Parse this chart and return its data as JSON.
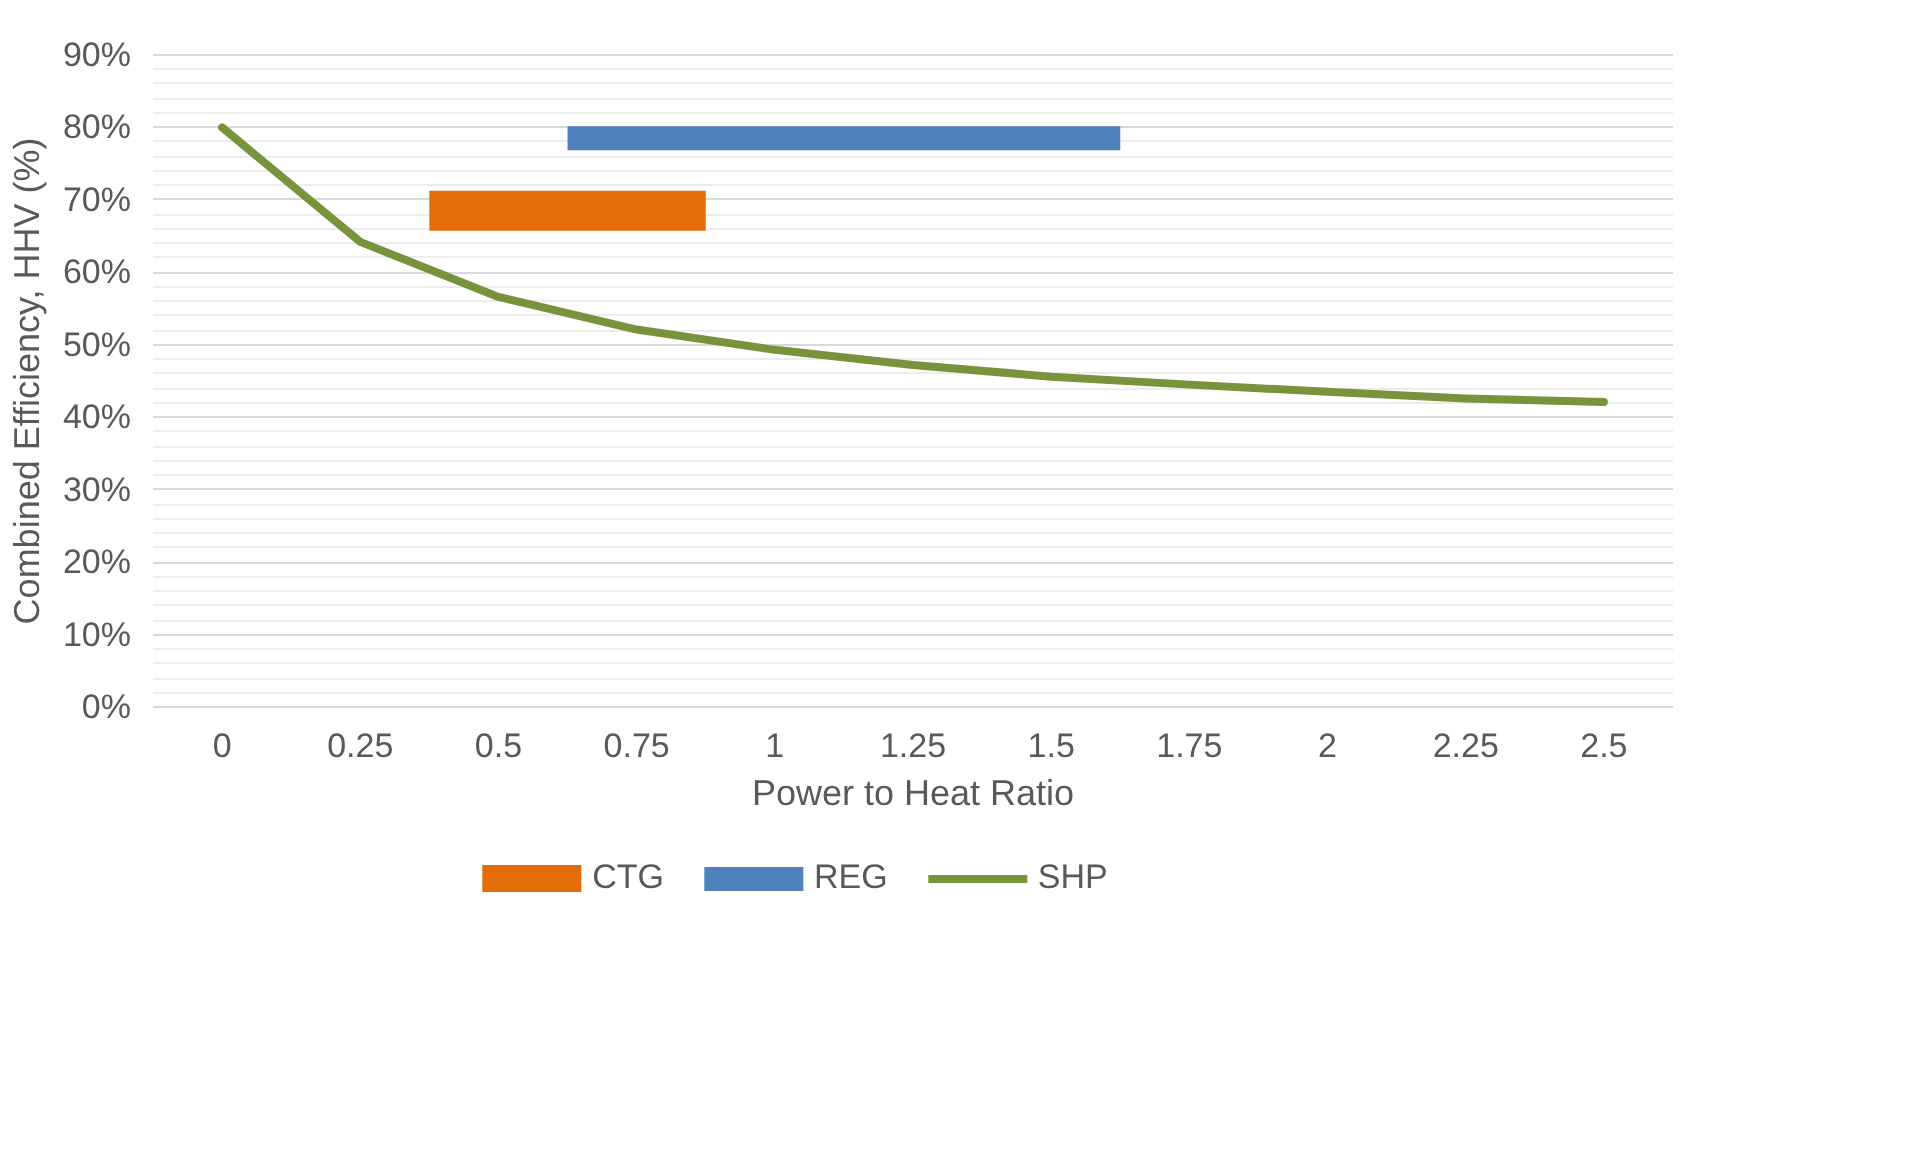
{
  "chart_data": {
    "type": "line",
    "xlabel": "Power to Heat Ratio",
    "ylabel": "Combined Efficiency, HHV (%)",
    "xlim": [
      -0.125,
      2.625
    ],
    "ylim": [
      0,
      90
    ],
    "xticks": [
      0,
      0.25,
      0.5,
      0.75,
      1,
      1.25,
      1.5,
      1.75,
      2,
      2.25,
      2.5
    ],
    "yticks": [
      {
        "value": 0,
        "label": "0%"
      },
      {
        "value": 10,
        "label": "10%"
      },
      {
        "value": 20,
        "label": "20%"
      },
      {
        "value": 30,
        "label": "30%"
      },
      {
        "value": 40,
        "label": "40%"
      },
      {
        "value": 50,
        "label": "50%"
      },
      {
        "value": 60,
        "label": "60%"
      },
      {
        "value": 70,
        "label": "70%"
      },
      {
        "value": 80,
        "label": "80%"
      },
      {
        "value": 90,
        "label": "90%"
      }
    ],
    "grid": "y",
    "legend": "bottom",
    "series": [
      {
        "name": "CTG",
        "color": "#e36c09",
        "x": [
          0.375,
          0.875
        ],
        "values": [
          68.5,
          68.5
        ]
      },
      {
        "name": "REG",
        "color": "#4f81bd",
        "x": [
          0.625,
          1.625
        ],
        "values": [
          78.5,
          78.5
        ]
      },
      {
        "name": "SHP",
        "color": "#77933c",
        "x": [
          0,
          0.25,
          0.5,
          0.75,
          1,
          1.25,
          1.5,
          1.75,
          2,
          2.25,
          2.5
        ],
        "values": [
          80,
          64.2,
          56.6,
          52.1,
          49.3,
          47.2,
          45.6,
          44.5,
          43.5,
          42.6,
          42.1
        ]
      }
    ]
  }
}
